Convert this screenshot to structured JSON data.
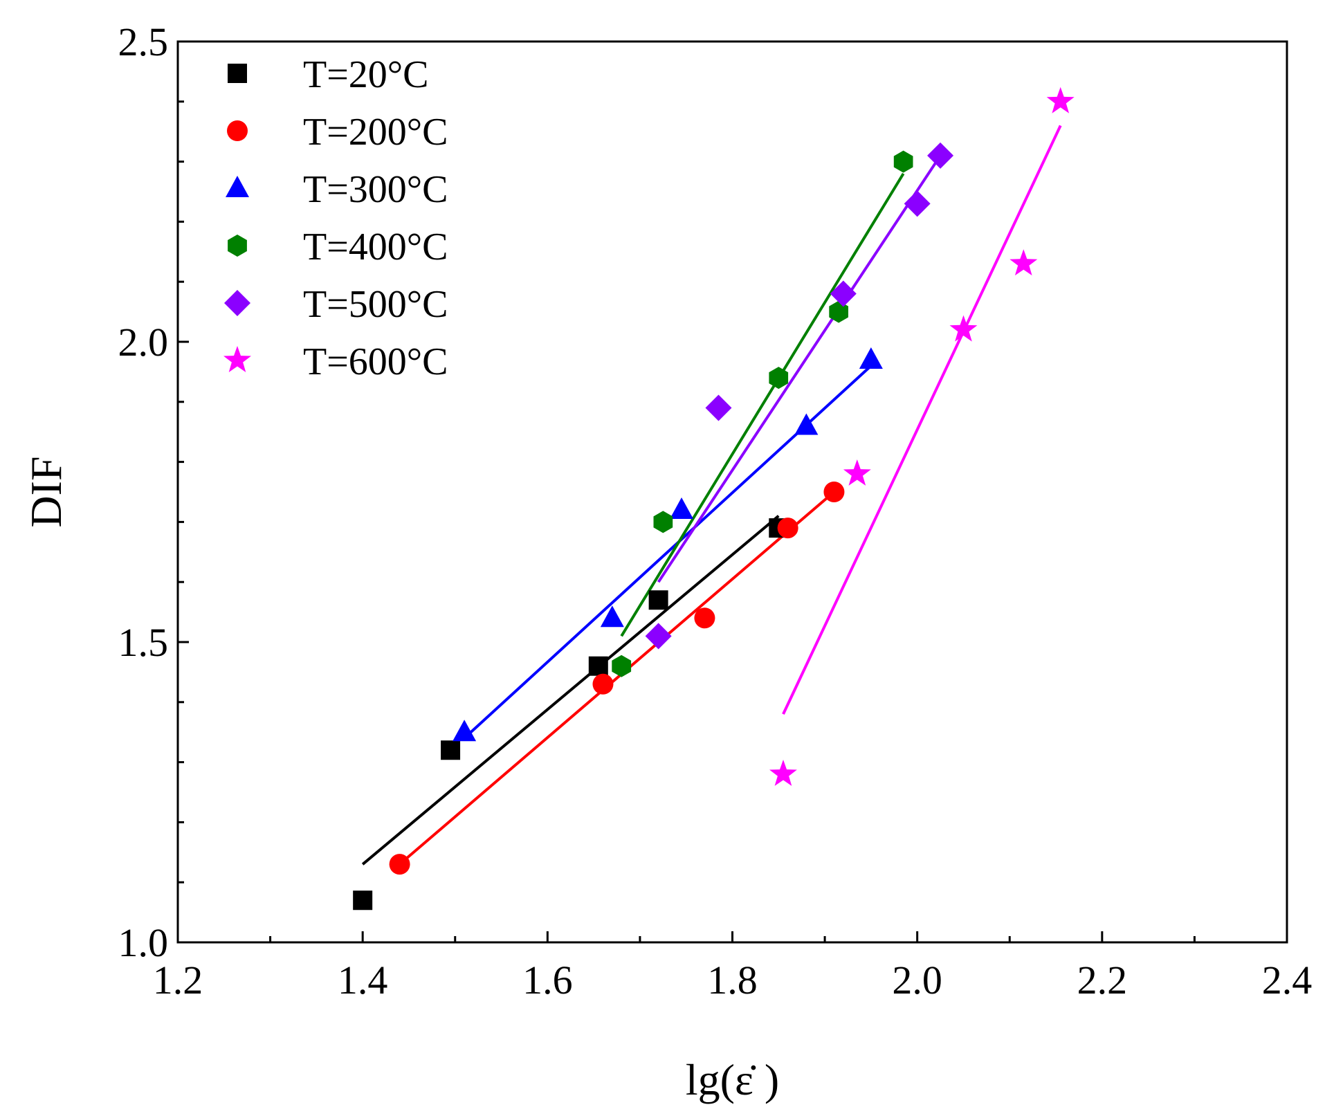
{
  "chart_data": {
    "type": "scatter",
    "title": "",
    "xlabel": "lg(ε̇ )",
    "ylabel": "DIF",
    "xlim": [
      1.2,
      2.4
    ],
    "ylim": [
      1.0,
      2.5
    ],
    "xticks": [
      "1.2",
      "1.4",
      "1.6",
      "1.8",
      "2.0",
      "2.2",
      "2.4"
    ],
    "yticks": [
      "1.0",
      "1.5",
      "2.0",
      "2.5"
    ],
    "x_minor_step": 0.1,
    "y_minor_step": 0.1,
    "grid": false,
    "legend_position": "top-left",
    "series": [
      {
        "name": "T=20°C",
        "color": "#000000",
        "marker": "square",
        "points": [
          [
            1.4,
            1.07
          ],
          [
            1.495,
            1.32
          ],
          [
            1.655,
            1.46
          ],
          [
            1.72,
            1.57
          ],
          [
            1.85,
            1.69
          ]
        ],
        "fit": [
          [
            1.4,
            1.13
          ],
          [
            1.85,
            1.71
          ]
        ]
      },
      {
        "name": "T=200°C",
        "color": "#ff0000",
        "marker": "circle",
        "points": [
          [
            1.44,
            1.13
          ],
          [
            1.66,
            1.43
          ],
          [
            1.77,
            1.54
          ],
          [
            1.86,
            1.69
          ],
          [
            1.91,
            1.75
          ]
        ],
        "fit": [
          [
            1.44,
            1.13
          ],
          [
            1.91,
            1.75
          ]
        ]
      },
      {
        "name": "T=300°C",
        "color": "#0000ff",
        "marker": "triangle",
        "points": [
          [
            1.51,
            1.35
          ],
          [
            1.67,
            1.54
          ],
          [
            1.745,
            1.72
          ],
          [
            1.88,
            1.86
          ],
          [
            1.95,
            1.97
          ]
        ],
        "fit": [
          [
            1.51,
            1.34
          ],
          [
            1.95,
            1.96
          ]
        ]
      },
      {
        "name": "T=400°C",
        "color": "#008000",
        "marker": "hexagon",
        "points": [
          [
            1.68,
            1.46
          ],
          [
            1.725,
            1.7
          ],
          [
            1.85,
            1.94
          ],
          [
            1.915,
            2.05
          ],
          [
            1.985,
            2.3
          ]
        ],
        "fit": [
          [
            1.68,
            1.51
          ],
          [
            1.985,
            2.28
          ]
        ]
      },
      {
        "name": "T=500°C",
        "color": "#8b00ff",
        "marker": "diamond",
        "points": [
          [
            1.72,
            1.51
          ],
          [
            1.785,
            1.89
          ],
          [
            1.92,
            2.08
          ],
          [
            2.0,
            2.23
          ],
          [
            2.025,
            2.31
          ]
        ],
        "fit": [
          [
            1.72,
            1.6
          ],
          [
            2.025,
            2.31
          ]
        ]
      },
      {
        "name": "T=600°C",
        "color": "#ff00ff",
        "marker": "star",
        "points": [
          [
            1.855,
            1.28
          ],
          [
            1.935,
            1.78
          ],
          [
            2.05,
            2.02
          ],
          [
            2.115,
            2.13
          ],
          [
            2.155,
            2.4
          ]
        ],
        "fit": [
          [
            1.855,
            1.38
          ],
          [
            2.155,
            2.36
          ]
        ]
      }
    ]
  }
}
